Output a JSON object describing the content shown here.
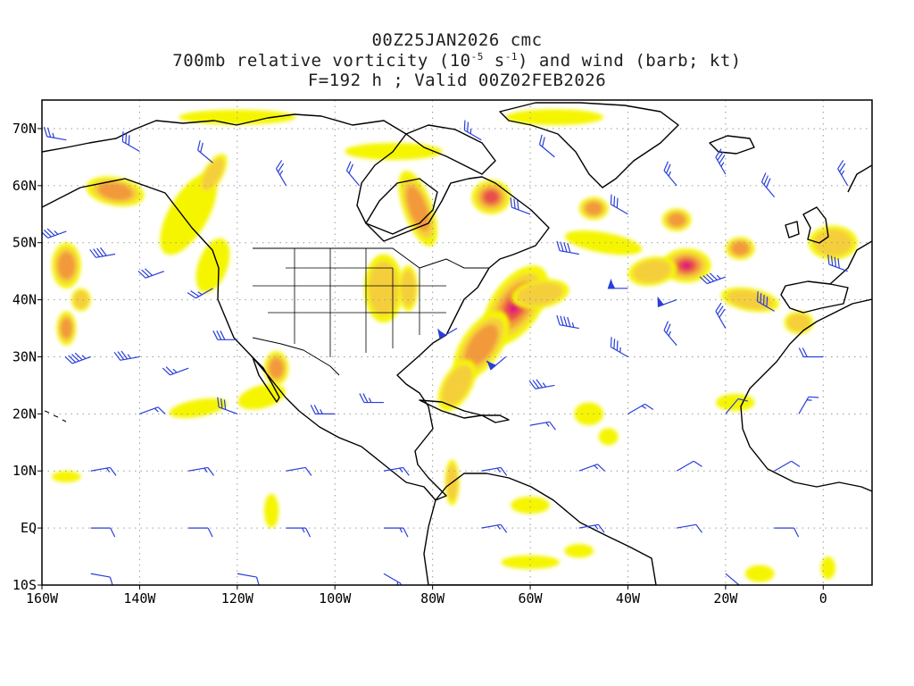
{
  "title": {
    "line1": "00Z25JAN2026 cmc",
    "line2_prefix": "700mb relative vorticity (10",
    "line2_exp1": "-5",
    "line2_mid": " s",
    "line2_exp2": "-1",
    "line2_suffix": ") and wind (barb; kt)",
    "line3": "F=192 h ; Valid 00Z02FEB2026"
  },
  "map": {
    "lon_range": [
      -160,
      10
    ],
    "lat_range": [
      -10,
      75
    ],
    "lon_ticks": [
      {
        "value": -160,
        "label": "160W"
      },
      {
        "value": -140,
        "label": "140W"
      },
      {
        "value": -120,
        "label": "120W"
      },
      {
        "value": -100,
        "label": "100W"
      },
      {
        "value": -80,
        "label": "80W"
      },
      {
        "value": -60,
        "label": "60W"
      },
      {
        "value": -40,
        "label": "40W"
      },
      {
        "value": -20,
        "label": "20W"
      },
      {
        "value": 0,
        "label": "0"
      }
    ],
    "lat_ticks": [
      {
        "value": 70,
        "label": "70N"
      },
      {
        "value": 60,
        "label": "60N"
      },
      {
        "value": 50,
        "label": "50N"
      },
      {
        "value": 40,
        "label": "40N"
      },
      {
        "value": 30,
        "label": "30N"
      },
      {
        "value": 20,
        "label": "20N"
      },
      {
        "value": 10,
        "label": "10N"
      },
      {
        "value": 0,
        "label": "EQ"
      },
      {
        "value": -10,
        "label": "10S"
      }
    ],
    "colors": {
      "low": "#f5f500",
      "mid": "#f5cf3a",
      "high": "#f29a3a",
      "very_high": "#e8504a",
      "max": "#e0147a",
      "barb": "#2a3fd8",
      "coast": "#000000",
      "grid": "#9a9a9a"
    },
    "vorticity_features": [
      {
        "lon": -63,
        "lat": 39,
        "rx": 5,
        "ry": 8,
        "level": 5,
        "rot": 35
      },
      {
        "lon": -70,
        "lat": 32,
        "rx": 4,
        "ry": 7,
        "level": 3,
        "rot": 35
      },
      {
        "lon": -58,
        "lat": 41,
        "rx": 6,
        "ry": 2.5,
        "level": 2,
        "rot": -10
      },
      {
        "lon": -75,
        "lat": 25,
        "rx": 3,
        "ry": 5,
        "level": 2,
        "rot": 30
      },
      {
        "lon": -28,
        "lat": 46,
        "rx": 5,
        "ry": 3,
        "level": 5,
        "rot": 0
      },
      {
        "lon": -35,
        "lat": 45,
        "rx": 5,
        "ry": 2.5,
        "level": 2,
        "rot": -10
      },
      {
        "lon": -68,
        "lat": 58,
        "rx": 4,
        "ry": 3,
        "level": 4,
        "rot": 0
      },
      {
        "lon": -83,
        "lat": 56,
        "rx": 3,
        "ry": 7,
        "level": 3,
        "rot": -20
      },
      {
        "lon": -145,
        "lat": 59,
        "rx": 6,
        "ry": 2.5,
        "level": 3,
        "rot": 10
      },
      {
        "lon": -155,
        "lat": 46,
        "rx": 3,
        "ry": 4,
        "level": 3,
        "rot": 0
      },
      {
        "lon": -155,
        "lat": 35,
        "rx": 2,
        "ry": 3,
        "level": 3,
        "rot": 0
      },
      {
        "lon": -152,
        "lat": 40,
        "rx": 2,
        "ry": 2,
        "level": 2,
        "rot": 0
      },
      {
        "lon": -30,
        "lat": 54,
        "rx": 3,
        "ry": 2,
        "level": 3,
        "rot": 0
      },
      {
        "lon": -47,
        "lat": 56,
        "rx": 3,
        "ry": 2,
        "level": 3,
        "rot": 0
      },
      {
        "lon": -17,
        "lat": 49,
        "rx": 3,
        "ry": 2,
        "level": 3,
        "rot": 0
      },
      {
        "lon": -112,
        "lat": 28,
        "rx": 2.5,
        "ry": 3,
        "level": 3,
        "rot": 0
      },
      {
        "lon": -90,
        "lat": 42,
        "rx": 4,
        "ry": 6,
        "level": 2,
        "rot": 0
      },
      {
        "lon": -85,
        "lat": 42,
        "rx": 2,
        "ry": 4,
        "level": 2,
        "rot": 0
      },
      {
        "lon": -130,
        "lat": 55,
        "rx": 4,
        "ry": 8,
        "level": 1,
        "rot": 30
      },
      {
        "lon": -125,
        "lat": 62,
        "rx": 2,
        "ry": 4,
        "level": 2,
        "rot": 30
      },
      {
        "lon": -125,
        "lat": 46,
        "rx": 3,
        "ry": 5,
        "level": 1,
        "rot": 20
      },
      {
        "lon": -115,
        "lat": 23,
        "rx": 5,
        "ry": 2,
        "level": 1,
        "rot": -15
      },
      {
        "lon": -128,
        "lat": 21,
        "rx": 6,
        "ry": 1.5,
        "level": 1,
        "rot": -10
      },
      {
        "lon": -88,
        "lat": 66,
        "rx": 10,
        "ry": 1.5,
        "level": 1,
        "rot": 0
      },
      {
        "lon": -120,
        "lat": 72,
        "rx": 12,
        "ry": 1.3,
        "level": 1,
        "rot": 0
      },
      {
        "lon": -55,
        "lat": 72,
        "rx": 10,
        "ry": 1.4,
        "level": 1,
        "rot": 0
      },
      {
        "lon": -45,
        "lat": 50,
        "rx": 8,
        "ry": 1.8,
        "level": 1,
        "rot": 10
      },
      {
        "lon": -15,
        "lat": 40,
        "rx": 6,
        "ry": 2,
        "level": 2,
        "rot": 10
      },
      {
        "lon": -5,
        "lat": 36,
        "rx": 3,
        "ry": 2,
        "level": 2,
        "rot": 0
      },
      {
        "lon": 2,
        "lat": 50,
        "rx": 5,
        "ry": 3,
        "level": 2,
        "rot": 0
      },
      {
        "lon": -18,
        "lat": 22,
        "rx": 4,
        "ry": 1.5,
        "level": 1,
        "rot": 0
      },
      {
        "lon": -48,
        "lat": 20,
        "rx": 3,
        "ry": 2,
        "level": 1,
        "rot": 0
      },
      {
        "lon": -44,
        "lat": 16,
        "rx": 2,
        "ry": 1.5,
        "level": 1,
        "rot": 0
      },
      {
        "lon": -76,
        "lat": 8,
        "rx": 1.5,
        "ry": 4,
        "level": 2,
        "rot": 0
      },
      {
        "lon": -113,
        "lat": 3,
        "rx": 1.5,
        "ry": 3,
        "level": 1,
        "rot": 0
      },
      {
        "lon": -60,
        "lat": 4,
        "rx": 4,
        "ry": 1.5,
        "level": 1,
        "rot": 0
      },
      {
        "lon": -50,
        "lat": -4,
        "rx": 3,
        "ry": 1.2,
        "level": 1,
        "rot": 0
      },
      {
        "lon": -13,
        "lat": -8,
        "rx": 3,
        "ry": 1.5,
        "level": 1,
        "rot": 0
      },
      {
        "lon": 1,
        "lat": -7,
        "rx": 1.5,
        "ry": 2,
        "level": 1,
        "rot": 0
      },
      {
        "lon": -60,
        "lat": -6,
        "rx": 6,
        "ry": 1.2,
        "level": 1,
        "rot": 0
      },
      {
        "lon": -155,
        "lat": 9,
        "rx": 3,
        "ry": 1,
        "level": 1,
        "rot": 0
      }
    ],
    "wind_barbs": [
      {
        "lon": -155,
        "lat": 68,
        "dir": 280,
        "spd": 25
      },
      {
        "lon": -140,
        "lat": 66,
        "dir": 300,
        "spd": 30
      },
      {
        "lon": -125,
        "lat": 64,
        "dir": 310,
        "spd": 20
      },
      {
        "lon": -110,
        "lat": 60,
        "dir": 330,
        "spd": 25
      },
      {
        "lon": -155,
        "lat": 52,
        "dir": 250,
        "spd": 35
      },
      {
        "lon": -145,
        "lat": 48,
        "dir": 260,
        "spd": 40
      },
      {
        "lon": -135,
        "lat": 45,
        "dir": 250,
        "spd": 30
      },
      {
        "lon": -125,
        "lat": 42,
        "dir": 240,
        "spd": 25
      },
      {
        "lon": -150,
        "lat": 30,
        "dir": 250,
        "spd": 45
      },
      {
        "lon": -140,
        "lat": 30,
        "dir": 260,
        "spd": 35
      },
      {
        "lon": -130,
        "lat": 28,
        "dir": 250,
        "spd": 25
      },
      {
        "lon": -120,
        "lat": 33,
        "dir": 270,
        "spd": 30
      },
      {
        "lon": -90,
        "lat": 22,
        "dir": 270,
        "spd": 25
      },
      {
        "lon": -75,
        "lat": 35,
        "dir": 240,
        "spd": 55
      },
      {
        "lon": -65,
        "lat": 30,
        "dir": 230,
        "spd": 60
      },
      {
        "lon": -55,
        "lat": 25,
        "dir": 260,
        "spd": 35
      },
      {
        "lon": -50,
        "lat": 35,
        "dir": 280,
        "spd": 45
      },
      {
        "lon": -40,
        "lat": 30,
        "dir": 300,
        "spd": 35
      },
      {
        "lon": -30,
        "lat": 32,
        "dir": 320,
        "spd": 25
      },
      {
        "lon": -20,
        "lat": 35,
        "dir": 330,
        "spd": 30
      },
      {
        "lon": -10,
        "lat": 38,
        "dir": 300,
        "spd": 40
      },
      {
        "lon": -40,
        "lat": 42,
        "dir": 270,
        "spd": 55
      },
      {
        "lon": -30,
        "lat": 40,
        "dir": 250,
        "spd": 50
      },
      {
        "lon": -20,
        "lat": 44,
        "dir": 250,
        "spd": 45
      },
      {
        "lon": -50,
        "lat": 48,
        "dir": 280,
        "spd": 40
      },
      {
        "lon": -40,
        "lat": 55,
        "dir": 300,
        "spd": 30
      },
      {
        "lon": -30,
        "lat": 60,
        "dir": 320,
        "spd": 25
      },
      {
        "lon": -20,
        "lat": 62,
        "dir": 330,
        "spd": 35
      },
      {
        "lon": -10,
        "lat": 58,
        "dir": 320,
        "spd": 30
      },
      {
        "lon": 5,
        "lat": 60,
        "dir": 330,
        "spd": 25
      },
      {
        "lon": -55,
        "lat": 65,
        "dir": 310,
        "spd": 20
      },
      {
        "lon": -70,
        "lat": 68,
        "dir": 300,
        "spd": 25
      },
      {
        "lon": 5,
        "lat": 45,
        "dir": 290,
        "spd": 40
      },
      {
        "lon": 0,
        "lat": 30,
        "dir": 270,
        "spd": 20
      },
      {
        "lon": -150,
        "lat": 10,
        "dir": 80,
        "spd": 15
      },
      {
        "lon": -130,
        "lat": 10,
        "dir": 80,
        "spd": 15
      },
      {
        "lon": -110,
        "lat": 10,
        "dir": 80,
        "spd": 10
      },
      {
        "lon": -90,
        "lat": 10,
        "dir": 80,
        "spd": 15
      },
      {
        "lon": -70,
        "lat": 10,
        "dir": 80,
        "spd": 15
      },
      {
        "lon": -50,
        "lat": 10,
        "dir": 70,
        "spd": 15
      },
      {
        "lon": -30,
        "lat": 10,
        "dir": 60,
        "spd": 10
      },
      {
        "lon": -10,
        "lat": 10,
        "dir": 60,
        "spd": 10
      },
      {
        "lon": -150,
        "lat": 0,
        "dir": 90,
        "spd": 10
      },
      {
        "lon": -130,
        "lat": 0,
        "dir": 90,
        "spd": 10
      },
      {
        "lon": -110,
        "lat": 0,
        "dir": 90,
        "spd": 15
      },
      {
        "lon": -90,
        "lat": 0,
        "dir": 90,
        "spd": 15
      },
      {
        "lon": -70,
        "lat": 0,
        "dir": 80,
        "spd": 15
      },
      {
        "lon": -50,
        "lat": 0,
        "dir": 80,
        "spd": 15
      },
      {
        "lon": -30,
        "lat": 0,
        "dir": 80,
        "spd": 10
      },
      {
        "lon": -10,
        "lat": 0,
        "dir": 90,
        "spd": 10
      },
      {
        "lon": -150,
        "lat": -8,
        "dir": 100,
        "spd": 10
      },
      {
        "lon": -120,
        "lat": -8,
        "dir": 100,
        "spd": 10
      },
      {
        "lon": -90,
        "lat": -8,
        "dir": 120,
        "spd": 15
      },
      {
        "lon": -20,
        "lat": -8,
        "dir": 130,
        "spd": 15
      },
      {
        "lon": -140,
        "lat": 20,
        "dir": 70,
        "spd": 15
      },
      {
        "lon": -120,
        "lat": 20,
        "dir": 290,
        "spd": 30
      },
      {
        "lon": -100,
        "lat": 20,
        "dir": 270,
        "spd": 25
      },
      {
        "lon": -60,
        "lat": 18,
        "dir": 80,
        "spd": 15
      },
      {
        "lon": -40,
        "lat": 20,
        "dir": 60,
        "spd": 15
      },
      {
        "lon": -20,
        "lat": 20,
        "dir": 40,
        "spd": 10
      },
      {
        "lon": -5,
        "lat": 20,
        "dir": 30,
        "spd": 15
      },
      {
        "lon": -60,
        "lat": 55,
        "dir": 290,
        "spd": 30
      },
      {
        "lon": -95,
        "lat": 60,
        "dir": 320,
        "spd": 20
      }
    ]
  }
}
